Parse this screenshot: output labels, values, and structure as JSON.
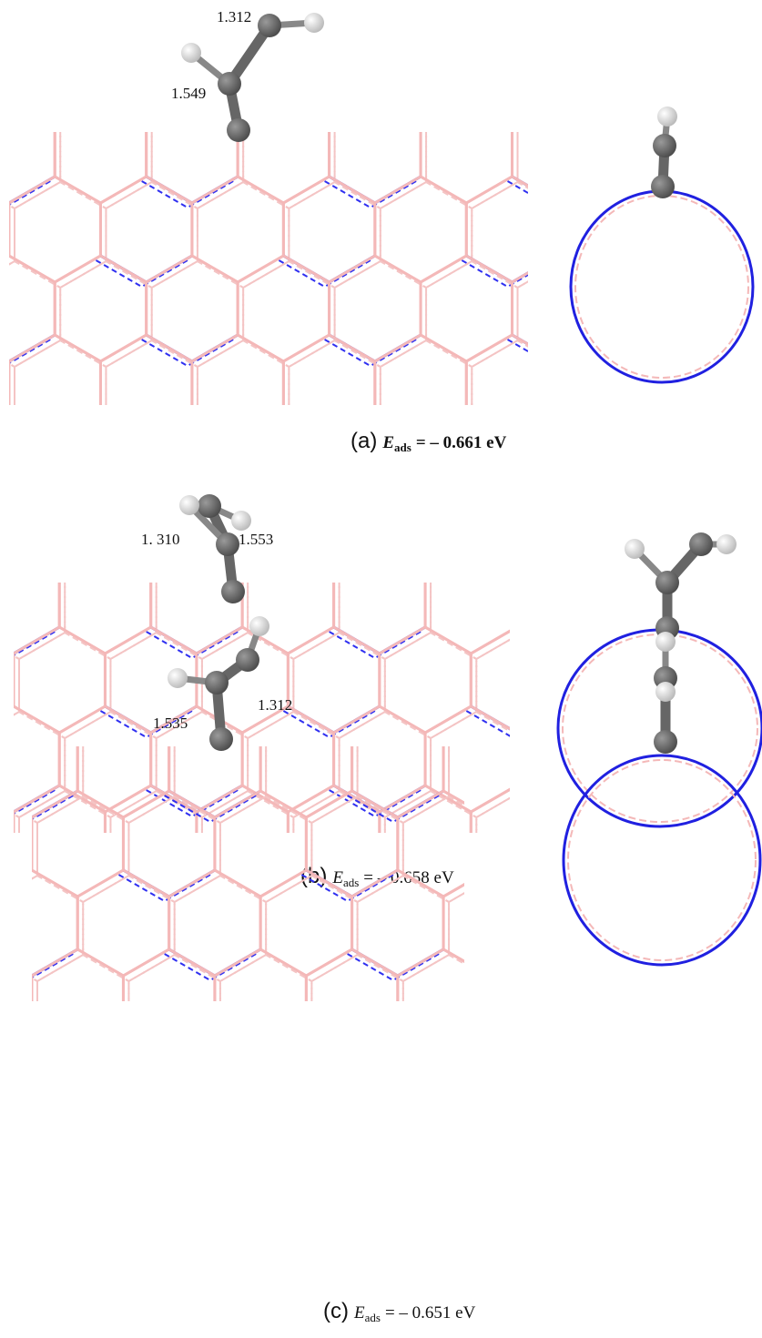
{
  "panels": [
    {
      "label": "(a)",
      "energy_symbol": "E",
      "energy_subscript": "ads",
      "energy_value": "= – 0.661 eV",
      "bond_lengths": [
        "1.312",
        "1.549"
      ]
    },
    {
      "label": "(b)",
      "energy_symbol": "E",
      "energy_subscript": "ads",
      "energy_value": "= – 0.658 eV",
      "bond_lengths": [
        "1. 310",
        "1.553"
      ]
    },
    {
      "label": "(c)",
      "energy_symbol": "E",
      "energy_subscript": "ads",
      "energy_value": "= – 0.651 eV",
      "bond_lengths": [
        "1.535",
        "1.312"
      ]
    }
  ]
}
